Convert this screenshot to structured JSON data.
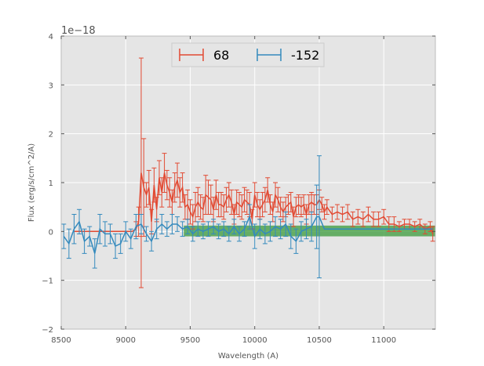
{
  "chart_data": {
    "type": "line",
    "xlabel": "Wavelength (A)",
    "ylabel": "Flux (erg/s/cm^2/A)",
    "y_offset_label": "1e−18",
    "xlim": [
      8500,
      11400
    ],
    "ylim": [
      -2,
      4
    ],
    "xticks": [
      8500,
      9000,
      9500,
      10000,
      10500,
      11000
    ],
    "yticks": [
      -2,
      -1,
      0,
      1,
      2,
      3,
      4
    ],
    "xtick_labels": [
      "8500",
      "9000",
      "9500",
      "10000",
      "10500",
      "11000"
    ],
    "ytick_labels": [
      "−2",
      "−1",
      "0",
      "1",
      "2",
      "3",
      "4"
    ],
    "grid": true,
    "legend": {
      "placement": "upper center",
      "ncol": 2
    },
    "band": {
      "x": [
        9450,
        11400
      ],
      "y": [
        -0.1,
        0.12
      ],
      "color": "#3a9a3a"
    },
    "colors": {
      "series1": "#e24a33",
      "series2": "#348abd",
      "plot_bg": "#e5e5e5",
      "grid": "#ffffff"
    },
    "series": [
      {
        "name": "68",
        "x": [
          8600,
          8700,
          8800,
          8900,
          9000,
          9050,
          9080,
          9100,
          9120,
          9140,
          9160,
          9180,
          9200,
          9220,
          9240,
          9260,
          9280,
          9300,
          9320,
          9340,
          9360,
          9380,
          9400,
          9420,
          9440,
          9460,
          9480,
          9500,
          9520,
          9540,
          9560,
          9580,
          9600,
          9620,
          9640,
          9660,
          9680,
          9700,
          9720,
          9740,
          9760,
          9780,
          9800,
          9820,
          9840,
          9860,
          9880,
          9900,
          9920,
          9940,
          9960,
          9980,
          10000,
          10020,
          10040,
          10060,
          10080,
          10100,
          10120,
          10140,
          10160,
          10180,
          10200,
          10220,
          10240,
          10260,
          10280,
          10300,
          10320,
          10340,
          10360,
          10380,
          10400,
          10420,
          10440,
          10460,
          10480,
          10500,
          10520,
          10540,
          10560,
          10600,
          10640,
          10680,
          10720,
          10760,
          10800,
          10840,
          10880,
          10920,
          10960,
          11000,
          11040,
          11080,
          11120,
          11160,
          11200,
          11240,
          11280,
          11320,
          11360,
          11380
        ],
        "y": [
          0.0,
          0.0,
          0.0,
          0.0,
          0.0,
          0.0,
          0.05,
          0.2,
          1.2,
          0.9,
          0.75,
          0.9,
          0.2,
          0.95,
          0.45,
          1.1,
          0.8,
          1.2,
          0.95,
          0.8,
          0.6,
          0.9,
          1.05,
          0.8,
          0.9,
          0.5,
          0.55,
          0.4,
          0.3,
          0.5,
          0.6,
          0.5,
          0.45,
          0.75,
          0.7,
          0.65,
          0.45,
          0.75,
          0.55,
          0.55,
          0.5,
          0.65,
          0.75,
          0.6,
          0.35,
          0.6,
          0.55,
          0.5,
          0.65,
          0.6,
          0.55,
          0.25,
          0.75,
          0.55,
          0.45,
          0.55,
          0.65,
          0.85,
          0.55,
          0.4,
          0.75,
          0.65,
          0.5,
          0.4,
          0.5,
          0.55,
          0.6,
          0.3,
          0.5,
          0.55,
          0.5,
          0.55,
          0.35,
          0.55,
          0.6,
          0.55,
          0.55,
          0.65,
          0.55,
          0.4,
          0.5,
          0.35,
          0.4,
          0.35,
          0.4,
          0.25,
          0.3,
          0.25,
          0.35,
          0.25,
          0.25,
          0.3,
          0.15,
          0.15,
          0.1,
          0.15,
          0.15,
          0.1,
          0.15,
          0.05,
          0.1,
          -0.05
        ],
        "err": [
          0.0,
          0.0,
          0.0,
          0.0,
          0.0,
          0.0,
          0.15,
          0.3,
          2.35,
          1.0,
          0.25,
          0.35,
          0.25,
          0.35,
          0.25,
          0.35,
          0.3,
          0.4,
          0.3,
          0.3,
          0.25,
          0.3,
          0.35,
          0.3,
          0.3,
          0.25,
          0.3,
          0.25,
          0.25,
          0.3,
          0.3,
          0.25,
          0.25,
          0.4,
          0.35,
          0.3,
          0.25,
          0.3,
          0.25,
          0.25,
          0.25,
          0.25,
          0.25,
          0.25,
          0.2,
          0.25,
          0.25,
          0.25,
          0.25,
          0.25,
          0.25,
          0.2,
          0.25,
          0.25,
          0.2,
          0.25,
          0.25,
          0.25,
          0.2,
          0.2,
          0.25,
          0.25,
          0.2,
          0.2,
          0.2,
          0.2,
          0.2,
          0.2,
          0.2,
          0.2,
          0.2,
          0.2,
          0.2,
          0.2,
          0.2,
          0.2,
          0.2,
          0.2,
          0.15,
          0.15,
          0.15,
          0.15,
          0.15,
          0.15,
          0.15,
          0.15,
          0.15,
          0.15,
          0.15,
          0.15,
          0.15,
          0.15,
          0.15,
          0.15,
          0.1,
          0.1,
          0.1,
          0.1,
          0.1,
          0.1,
          0.1,
          0.15
        ]
      },
      {
        "name": "-152",
        "x": [
          8520,
          8560,
          8600,
          8640,
          8680,
          8720,
          8760,
          8800,
          8840,
          8880,
          8920,
          8960,
          9000,
          9040,
          9080,
          9120,
          9160,
          9200,
          9240,
          9280,
          9320,
          9360,
          9400,
          9440,
          9480,
          9520,
          9560,
          9600,
          9640,
          9680,
          9720,
          9760,
          9800,
          9840,
          9880,
          9920,
          9960,
          10000,
          10040,
          10080,
          10120,
          10160,
          10200,
          10240,
          10280,
          10320,
          10360,
          10400,
          10440,
          10480,
          10500,
          10540,
          10600,
          10700,
          10800,
          10900,
          11000,
          11100,
          11200,
          11300,
          11380
        ],
        "y": [
          -0.1,
          -0.25,
          0.05,
          0.2,
          -0.2,
          -0.1,
          -0.45,
          0.05,
          -0.05,
          -0.05,
          -0.3,
          -0.25,
          0.0,
          -0.15,
          0.1,
          0.15,
          -0.05,
          -0.2,
          0.05,
          0.15,
          0.05,
          0.15,
          0.15,
          0.05,
          0.1,
          -0.05,
          0.05,
          0.0,
          0.05,
          0.1,
          0.0,
          0.05,
          -0.05,
          0.1,
          -0.05,
          0.05,
          0.3,
          -0.1,
          0.05,
          -0.05,
          0.0,
          0.1,
          0.05,
          0.15,
          -0.1,
          -0.2,
          0.0,
          0.05,
          0.1,
          0.3,
          0.3,
          0.05,
          0.05,
          0.05,
          0.05,
          0.05,
          0.05,
          0.05,
          0.05,
          0.05,
          0.05
        ],
        "err": [
          0.25,
          0.3,
          0.3,
          0.25,
          0.25,
          0.2,
          0.3,
          0.3,
          0.25,
          0.2,
          0.25,
          0.2,
          0.2,
          0.2,
          0.25,
          0.2,
          0.15,
          0.2,
          0.2,
          0.2,
          0.15,
          0.2,
          0.15,
          0.15,
          0.15,
          0.15,
          0.15,
          0.15,
          0.15,
          0.15,
          0.15,
          0.15,
          0.15,
          0.15,
          0.15,
          0.15,
          0.25,
          0.25,
          0.2,
          0.2,
          0.2,
          0.2,
          0.2,
          0.25,
          0.25,
          0.25,
          0.2,
          0.2,
          0.3,
          0.65,
          1.25,
          0.0,
          0.0,
          0.0,
          0.0,
          0.0,
          0.0,
          0.0,
          0.0,
          0.0,
          0.0
        ]
      }
    ]
  }
}
